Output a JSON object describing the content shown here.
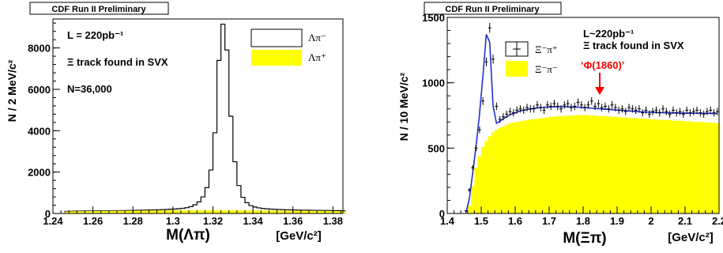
{
  "chart_data": [
    {
      "type": "bar",
      "banner": "CDF Run II Preliminary",
      "xlabel": "M(Λπ)",
      "xunit": "[GeV/c²]",
      "ylabel": "N / 2 MeV/c²",
      "xlim": [
        1.24,
        1.385
      ],
      "ylim": [
        0,
        9400
      ],
      "xticks": [
        "1.24",
        "1.26",
        "1.28",
        "1.3",
        "1.32",
        "1.34",
        "1.36",
        "1.38"
      ],
      "xtick_values": [
        1.24,
        1.26,
        1.28,
        1.3,
        1.32,
        1.34,
        1.36,
        1.38
      ],
      "yticks": [
        "0",
        "2000",
        "4000",
        "6000",
        "8000"
      ],
      "ytick_values": [
        0,
        2000,
        4000,
        6000,
        8000
      ],
      "annotations": [
        "L = 220pb⁻¹",
        "Ξ track found in SVX",
        "N=36,000"
      ],
      "legend": [
        {
          "label": "Λπ⁻",
          "style": "open",
          "color": "#000000"
        },
        {
          "label": "Λπ⁺",
          "style": "filled",
          "color": "#ffff00"
        }
      ],
      "bin_width": 0.002,
      "x_start": 1.246,
      "series": [
        {
          "name": "Λπ⁻",
          "style": "step",
          "values": [
            100,
            105,
            110,
            110,
            115,
            115,
            120,
            120,
            125,
            125,
            130,
            130,
            135,
            135,
            140,
            145,
            145,
            150,
            155,
            160,
            165,
            170,
            175,
            180,
            185,
            195,
            205,
            215,
            230,
            250,
            280,
            330,
            420,
            560,
            800,
            1250,
            2100,
            3900,
            7400,
            9150,
            7900,
            4700,
            2500,
            1350,
            780,
            520,
            380,
            310,
            270,
            240,
            225,
            210,
            200,
            190,
            185,
            180,
            175,
            170,
            165,
            160,
            160,
            155,
            150,
            150,
            145,
            145,
            140,
            135,
            135,
            130
          ]
        },
        {
          "name": "Λπ⁺",
          "style": "filled",
          "values": [
            95,
            100,
            105,
            105,
            110,
            110,
            115,
            115,
            120,
            120,
            125,
            125,
            130,
            130,
            130,
            135,
            135,
            135,
            140,
            140,
            140,
            140,
            145,
            145,
            145,
            145,
            150,
            150,
            150,
            150,
            150,
            150,
            150,
            150,
            150,
            150,
            150,
            150,
            150,
            150,
            150,
            150,
            150,
            150,
            145,
            145,
            145,
            145,
            145,
            140,
            140,
            140,
            140,
            135,
            135,
            135,
            135,
            130,
            130,
            130,
            130,
            125,
            125,
            125,
            120,
            120,
            120,
            115,
            115,
            115
          ]
        }
      ]
    },
    {
      "type": "bar",
      "banner": "CDF Run II Preliminary",
      "xlabel": "M(Ξπ)",
      "xunit": "[GeV/c²]",
      "ylabel": "N / 10 MeV/c²",
      "xlim": [
        1.4,
        2.2
      ],
      "ylim": [
        0,
        1500
      ],
      "xticks": [
        "1.4",
        "1.5",
        "1.6",
        "1.7",
        "1.8",
        "1.9",
        "2",
        "2.1",
        "2.2"
      ],
      "xtick_values": [
        1.4,
        1.5,
        1.6,
        1.7,
        1.8,
        1.9,
        2.0,
        2.1,
        2.2
      ],
      "yticks": [
        "0",
        "500",
        "1000",
        "1500"
      ],
      "ytick_values": [
        0,
        500,
        1000,
        1500
      ],
      "annotations": [
        "L~220pb⁻¹",
        "Ξ track found in SVX"
      ],
      "signal_label": "‘Φ(1860)’",
      "signal_x": 1.86,
      "legend": [
        {
          "label": "Ξ⁻π⁺",
          "style": "points",
          "color": "#000000"
        },
        {
          "label": "Ξ⁻π⁻",
          "style": "filled",
          "color": "#ffff00"
        }
      ],
      "bin_width": 0.01,
      "x_start": 1.45,
      "series": [
        {
          "name": "Ξ⁻π⁻",
          "style": "filled",
          "values": [
            0,
            60,
            210,
            350,
            440,
            510,
            555,
            590,
            620,
            640,
            655,
            665,
            680,
            690,
            695,
            700,
            705,
            710,
            715,
            720,
            720,
            725,
            730,
            730,
            735,
            740,
            740,
            745,
            745,
            745,
            750,
            750,
            750,
            755,
            750,
            755,
            750,
            750,
            750,
            745,
            745,
            745,
            740,
            740,
            740,
            735,
            735,
            735,
            730,
            730,
            730,
            725,
            725,
            725,
            720,
            720,
            720,
            715,
            715,
            715,
            715,
            710,
            710,
            710,
            705,
            705,
            705,
            700,
            700,
            700,
            700,
            695,
            695,
            695,
            690
          ]
        },
        {
          "name": "Ξ⁻π⁺",
          "style": "points",
          "values": [
            20,
            180,
            350,
            500,
            640,
            860,
            1160,
            1420,
            1180,
            820,
            720,
            740,
            760,
            780,
            770,
            790,
            800,
            790,
            810,
            800,
            800,
            830,
            810,
            790,
            830,
            820,
            840,
            820,
            800,
            830,
            840,
            810,
            820,
            850,
            830,
            810,
            830,
            860,
            820,
            840,
            810,
            820,
            800,
            830,
            810,
            790,
            800,
            780,
            810,
            800,
            790,
            800,
            770,
            790,
            760,
            780,
            790,
            770,
            800,
            780,
            760,
            790,
            770,
            780,
            760,
            790,
            770,
            780,
            790,
            770,
            760,
            780,
            790,
            770,
            780
          ]
        },
        {
          "name": "fit",
          "style": "line",
          "values": [
            5,
            110,
            310,
            520,
            760,
            1050,
            1370,
            1310,
            820,
            690,
            705,
            725,
            740,
            755,
            765,
            775,
            785,
            790,
            795,
            800,
            805,
            808,
            810,
            812,
            814,
            815,
            816,
            817,
            817,
            817,
            816,
            815,
            814,
            813,
            812,
            810,
            808,
            806,
            804,
            802,
            800,
            798,
            796,
            794,
            792,
            790,
            788,
            786,
            784,
            782,
            780,
            778,
            777,
            776,
            775,
            774,
            773,
            772,
            771,
            770,
            770,
            769,
            769,
            768,
            768,
            767,
            767,
            767,
            766,
            766,
            766,
            766,
            765,
            765,
            765
          ]
        }
      ]
    }
  ]
}
